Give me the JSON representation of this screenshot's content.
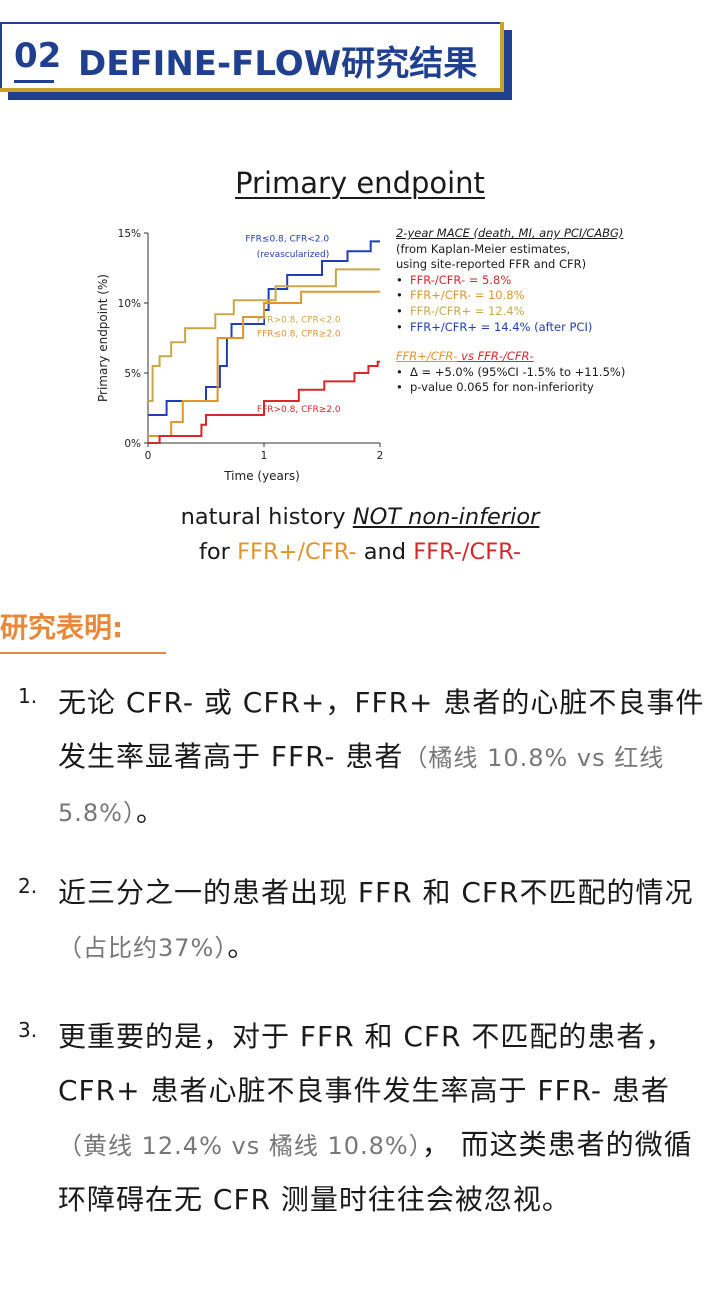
{
  "header": {
    "number": "02",
    "title": "DEFINE-FLOW研究结果"
  },
  "figure": {
    "title": "Primary endpoint",
    "caption_line1_a": "natural history ",
    "caption_line1_b": "NOT non-inferior",
    "caption_line2_a": "for ",
    "caption_line2_b": "FFR+/CFR-",
    "caption_line2_c": " and ",
    "caption_line2_d": "FFR-/CFR-"
  },
  "chart_data": {
    "type": "line",
    "xlabel": "Time (years)",
    "ylabel": "Primary endpoint (%)",
    "xlim": [
      0,
      2
    ],
    "ylim": [
      0,
      15
    ],
    "x_ticks": [
      "0",
      "1",
      "2"
    ],
    "y_ticks": [
      "0%",
      "5%",
      "10%",
      "15%"
    ],
    "colors": {
      "blue": "#1f3fb5",
      "orange": "#e0952e",
      "yellow": "#c8a84a",
      "red": "#d6282b"
    },
    "series": [
      {
        "color": "blue",
        "steps": [
          [
            0,
            2.0
          ],
          [
            0.16,
            2.0
          ],
          [
            0.16,
            3.0
          ],
          [
            0.5,
            3.0
          ],
          [
            0.5,
            4.0
          ],
          [
            0.62,
            4.0
          ],
          [
            0.62,
            5.5
          ],
          [
            0.68,
            5.5
          ],
          [
            0.68,
            7.5
          ],
          [
            0.72,
            7.5
          ],
          [
            0.72,
            8.5
          ],
          [
            1.0,
            8.5
          ],
          [
            1.0,
            9.5
          ],
          [
            1.04,
            9.5
          ],
          [
            1.04,
            11.0
          ],
          [
            1.2,
            11.0
          ],
          [
            1.2,
            12.0
          ],
          [
            1.5,
            12.0
          ],
          [
            1.5,
            13.0
          ],
          [
            1.72,
            13.0
          ],
          [
            1.72,
            13.7
          ],
          [
            1.92,
            13.7
          ],
          [
            1.92,
            14.4
          ],
          [
            2.0,
            14.4
          ]
        ]
      },
      {
        "color": "orange",
        "steps": [
          [
            0,
            0.5
          ],
          [
            0.2,
            0.5
          ],
          [
            0.2,
            1.5
          ],
          [
            0.3,
            1.5
          ],
          [
            0.3,
            3.0
          ],
          [
            0.6,
            3.0
          ],
          [
            0.6,
            7.5
          ],
          [
            0.82,
            7.5
          ],
          [
            0.82,
            9.0
          ],
          [
            1.0,
            9.0
          ],
          [
            1.0,
            10.0
          ],
          [
            1.32,
            10.0
          ],
          [
            1.32,
            10.8
          ],
          [
            2.0,
            10.8
          ]
        ]
      },
      {
        "color": "yellow",
        "steps": [
          [
            0,
            3.0
          ],
          [
            0.04,
            3.0
          ],
          [
            0.04,
            5.5
          ],
          [
            0.1,
            5.5
          ],
          [
            0.1,
            6.2
          ],
          [
            0.2,
            6.2
          ],
          [
            0.2,
            7.2
          ],
          [
            0.32,
            7.2
          ],
          [
            0.32,
            8.2
          ],
          [
            0.58,
            8.2
          ],
          [
            0.58,
            9.2
          ],
          [
            0.74,
            9.2
          ],
          [
            0.74,
            10.2
          ],
          [
            1.1,
            10.2
          ],
          [
            1.1,
            11.2
          ],
          [
            1.62,
            11.2
          ],
          [
            1.62,
            12.4
          ],
          [
            2.0,
            12.4
          ]
        ]
      },
      {
        "color": "red",
        "steps": [
          [
            0,
            0
          ],
          [
            0.1,
            0
          ],
          [
            0.1,
            0.5
          ],
          [
            0.46,
            0.5
          ],
          [
            0.46,
            1.3
          ],
          [
            0.5,
            1.3
          ],
          [
            0.5,
            2.0
          ],
          [
            1.0,
            2.0
          ],
          [
            1.0,
            3.0
          ],
          [
            1.3,
            3.0
          ],
          [
            1.3,
            3.8
          ],
          [
            1.52,
            3.8
          ],
          [
            1.52,
            4.4
          ],
          [
            1.78,
            4.4
          ],
          [
            1.78,
            5.0
          ],
          [
            1.9,
            5.0
          ],
          [
            1.9,
            5.5
          ],
          [
            1.98,
            5.5
          ],
          [
            1.98,
            5.8
          ],
          [
            2.0,
            5.8
          ]
        ]
      }
    ],
    "annotations": [
      {
        "text": "FFR≤0.8, CFR<2.0",
        "x": 1.2,
        "y": 14.4,
        "color": "blue"
      },
      {
        "text": "(revascularized)",
        "x": 1.25,
        "y": 13.3,
        "color": "blue"
      },
      {
        "text": "FFR>0.8, CFR<2.0",
        "x": 1.3,
        "y": 8.6,
        "color": "yellow"
      },
      {
        "text": "FFR≤0.8, CFR≥2.0",
        "x": 1.3,
        "y": 7.6,
        "color": "orange"
      },
      {
        "text": "FFR>0.8, CFR≥2.0",
        "x": 1.3,
        "y": 2.2,
        "color": "red"
      }
    ]
  },
  "legend": {
    "heading": "2-year MACE (death, MI, any PCI/CABG)",
    "sub1": "(from Kaplan-Meier estimates,",
    "sub2": "using site-reported FFR and CFR)",
    "items": [
      {
        "text": "FFR-/CFR- = 5.8%",
        "color": "#d6282b"
      },
      {
        "text": "FFR+/CFR- = 10.8%",
        "color": "#e0952e"
      },
      {
        "text": "FFR-/CFR+ = 12.4%",
        "color": "#c8a84a"
      },
      {
        "text": "FFR+/CFR+ = 14.4% (after PCI)",
        "color": "#1f3fb5"
      }
    ],
    "comp_a": "FFR+/CFR-",
    "comp_vs": " vs ",
    "comp_b": "FFR-/CFR-",
    "stats": [
      "Δ = +5.0% (95%CI -1.5% to +11.5%)",
      "p-value 0.065 for non-inferiority"
    ],
    "bullet": "•"
  },
  "findings": {
    "heading": "研究表明:",
    "items": [
      {
        "no": "1.",
        "text": "无论 CFR- 或 CFR+，FFR+ 患者的心脏不良事件发生率显著高于 FFR- 患者",
        "note": "（橘线 10.8% vs 红线 5.8%）",
        "tail": "。"
      },
      {
        "no": "2.",
        "text": "近三分之一的患者出现 FFR 和 CFR不匹配的情况",
        "note": "（占比约37%）",
        "tail": "。"
      },
      {
        "no": "3.",
        "text": "更重要的是，对于 FFR 和 CFR 不匹配的患者，CFR+ 患者心脏不良事件发生率高于 FFR- 患者",
        "note": "（黄线 12.4% vs 橘线 10.8%）",
        "tail": "， 而这类患者的微循环障碍在无 CFR 测量时往往会被忽视。"
      }
    ]
  }
}
